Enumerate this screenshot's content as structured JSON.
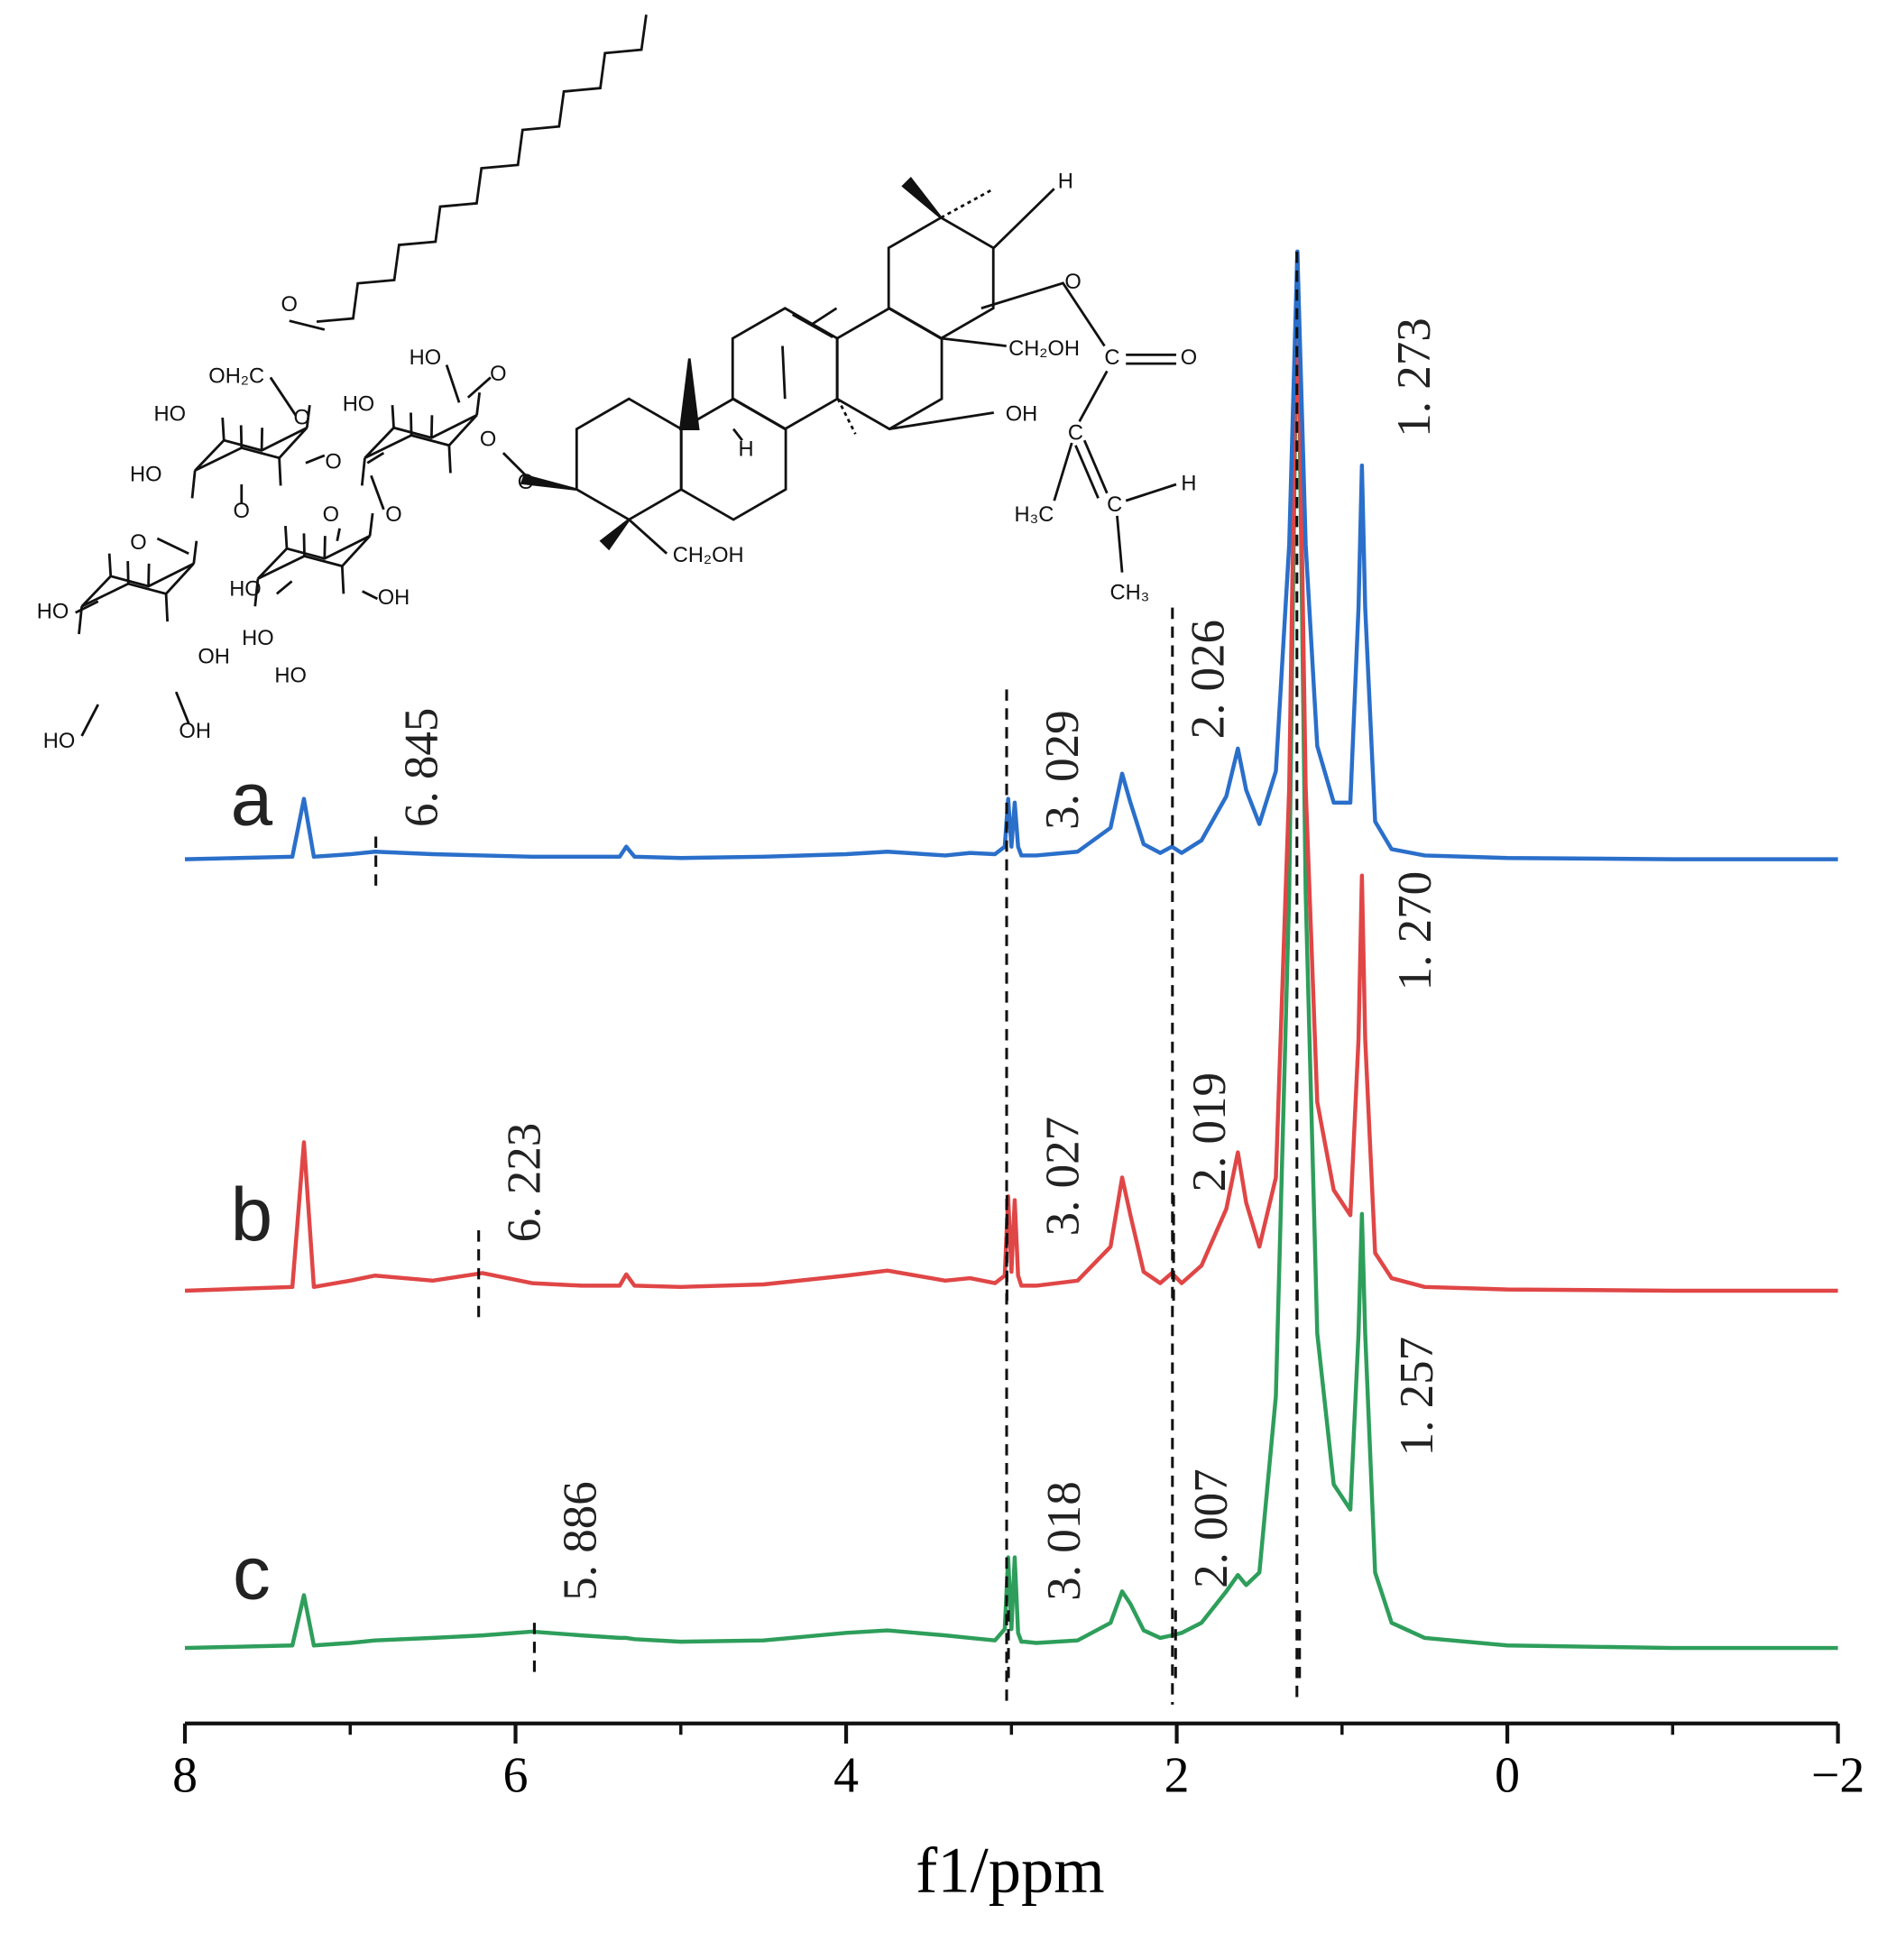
{
  "chart_data": {
    "type": "line",
    "x": [
      8.0,
      7.35,
      7.28,
      7.22,
      7.0,
      6.85,
      6.5,
      6.2,
      5.9,
      5.6,
      5.37,
      5.33,
      5.28,
      5.0,
      4.5,
      4.0,
      3.75,
      3.4,
      3.25,
      3.1,
      3.04,
      3.02,
      3.0,
      2.98,
      2.96,
      2.94,
      2.92,
      2.85,
      2.6,
      2.4,
      2.33,
      2.28,
      2.2,
      2.1,
      2.03,
      1.97,
      1.85,
      1.7,
      1.63,
      1.58,
      1.5,
      1.4,
      1.32,
      1.27,
      1.22,
      1.15,
      1.05,
      0.95,
      0.9,
      0.88,
      0.86,
      0.8,
      0.7,
      0.5,
      0.0,
      -1.0,
      -2.0
    ],
    "series": [
      {
        "name": "a",
        "color": "#2a6fca",
        "values": [
          0,
          2,
          48,
          2,
          4,
          6,
          4,
          3,
          2,
          2,
          2,
          10,
          2,
          1,
          2,
          4,
          6,
          3,
          5,
          4,
          10,
          48,
          10,
          45,
          10,
          3,
          3,
          3,
          6,
          25,
          68,
          45,
          12,
          5,
          10,
          5,
          15,
          50,
          88,
          55,
          28,
          70,
          250,
          483,
          250,
          90,
          45,
          45,
          200,
          313,
          200,
          30,
          8,
          3,
          1,
          0,
          0
        ],
        "peaks": [
          {
            "value": 6.845,
            "label": "6. 845"
          },
          {
            "value": 3.029,
            "label": "3. 029"
          },
          {
            "value": 2.026,
            "label": "2. 026"
          },
          {
            "value": 1.273,
            "label": "1. 273"
          }
        ]
      },
      {
        "name": "b",
        "color": "#e04646",
        "values": [
          0,
          3,
          118,
          3,
          8,
          12,
          8,
          14,
          6,
          4,
          4,
          13,
          4,
          3,
          5,
          12,
          16,
          8,
          10,
          6,
          12,
          75,
          15,
          72,
          12,
          4,
          4,
          4,
          8,
          35,
          90,
          60,
          15,
          6,
          14,
          6,
          20,
          65,
          110,
          70,
          35,
          90,
          400,
          826,
          400,
          150,
          80,
          60,
          200,
          330,
          200,
          30,
          10,
          3,
          1,
          0,
          0
        ],
        "peaks": [
          {
            "value": 6.223,
            "label": "6. 223"
          },
          {
            "value": 3.027,
            "label": "3. 027"
          },
          {
            "value": 2.019,
            "label": "2. 019"
          },
          {
            "value": 1.27,
            "label": "1. 270"
          }
        ]
      },
      {
        "name": "c",
        "color": "#2e9e5b",
        "values": [
          0,
          2,
          42,
          2,
          4,
          6,
          8,
          10,
          13,
          10,
          8,
          8,
          7,
          5,
          6,
          12,
          14,
          10,
          8,
          6,
          15,
          72,
          15,
          72,
          12,
          5,
          5,
          4,
          6,
          20,
          45,
          35,
          14,
          8,
          10,
          12,
          20,
          45,
          58,
          50,
          60,
          200,
          600,
          1110,
          600,
          250,
          130,
          110,
          250,
          345,
          250,
          60,
          20,
          8,
          2,
          0,
          0
        ],
        "peaks": [
          {
            "value": 5.886,
            "label": "5. 886"
          },
          {
            "value": 3.018,
            "label": "3. 018"
          },
          {
            "value": 2.007,
            "label": "2. 007"
          },
          {
            "value": 1.257,
            "label": "1. 257"
          }
        ]
      }
    ],
    "xlim": [
      8,
      -2
    ],
    "xticks": [
      8,
      6,
      4,
      2,
      0,
      {
        "value": -2,
        "label": "−2"
      }
    ],
    "minor_xticks": [
      7,
      5,
      3,
      1,
      -1
    ],
    "xlabel": "f1/ppm"
  },
  "structure": {
    "labels": [
      "O",
      "OH₂C",
      "HO",
      "O",
      "HO",
      "O",
      "HO",
      "O",
      "HO",
      "O",
      "O",
      "O",
      "O",
      "O",
      "HO",
      "OH",
      "HO",
      "OH",
      "HO",
      "OH",
      "HO",
      "HO",
      "O",
      "H",
      "CH₂OH",
      "CH₂OH",
      "OH",
      "H",
      "O",
      "C",
      "O",
      "C",
      "H₃C",
      "C",
      "H",
      "CH₃"
    ]
  }
}
